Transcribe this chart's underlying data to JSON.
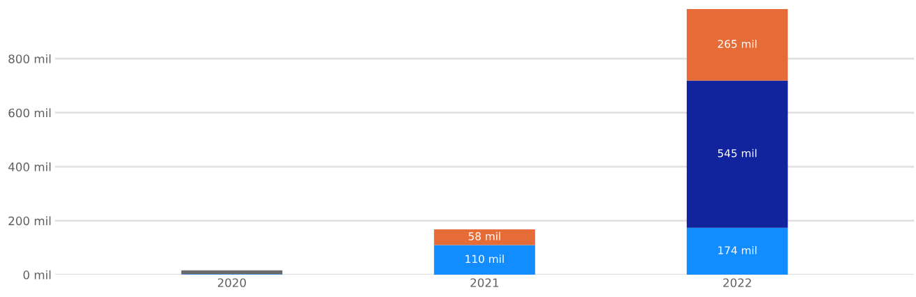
{
  "chart_data": {
    "type": "bar",
    "stacked": true,
    "categories": [
      "2020",
      "2021",
      "2022"
    ],
    "series": [
      {
        "color": "#118dff",
        "values": [
          2,
          110,
          174
        ],
        "value_labels": [
          null,
          "110 mil",
          "174 mil"
        ]
      },
      {
        "color": "#12239e",
        "values": [
          null,
          null,
          545
        ],
        "value_labels": [
          null,
          null,
          "545 mil"
        ]
      },
      {
        "color": "#e66c37",
        "values": [
          null,
          58,
          265
        ],
        "value_labels": [
          null,
          "58 mil",
          "265 mil"
        ]
      },
      {
        "color": "#6b6b6b",
        "values": [
          14,
          null,
          null
        ],
        "value_labels": [
          null,
          null,
          null
        ]
      }
    ],
    "ylim": [
      0,
      990
    ],
    "yticks": [
      {
        "value": 0,
        "label": "0 mil"
      },
      {
        "value": 200,
        "label": "200 mil"
      },
      {
        "value": 400,
        "label": "400 mil"
      },
      {
        "value": 600,
        "label": "600 mil"
      },
      {
        "value": 800,
        "label": "800 mil"
      }
    ],
    "grid": "y"
  }
}
